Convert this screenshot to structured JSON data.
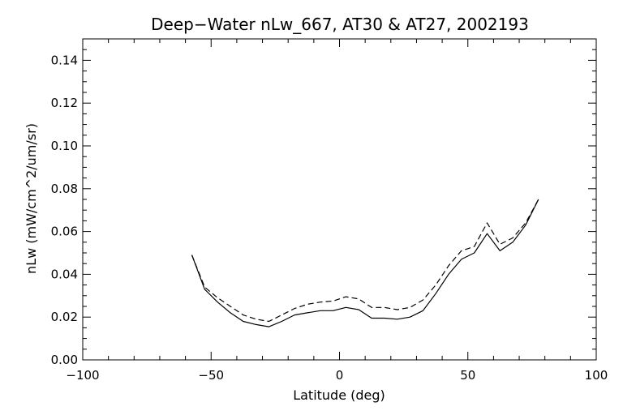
{
  "chart_data": {
    "type": "line",
    "title": "Deep−Water nLw_667, AT30 & AT27, 2002193",
    "xlabel": "Latitude (deg)",
    "ylabel": "nLw (mW/cm^2/um/sr)",
    "xlim": [
      -100,
      100
    ],
    "ylim": [
      0.0,
      0.15
    ],
    "x_ticks": [
      "−100",
      "−50",
      "0",
      "50",
      "100"
    ],
    "y_ticks": [
      "0.00",
      "0.02",
      "0.04",
      "0.06",
      "0.08",
      "0.10",
      "0.12",
      "0.14"
    ],
    "x_tick_values": [
      -100,
      -50,
      0,
      50,
      100
    ],
    "y_tick_values": [
      0.0,
      0.02,
      0.04,
      0.06,
      0.08,
      0.1,
      0.12,
      0.14
    ],
    "grid": false,
    "legend": "none",
    "series": [
      {
        "style": "solid",
        "color": "#000000",
        "x": [
          -57.5,
          -52.5,
          -47.5,
          -42.5,
          -37.5,
          -32.5,
          -27.5,
          -22.5,
          -17.5,
          -12.5,
          -7.5,
          -2.5,
          2.5,
          7.5,
          12.5,
          17.5,
          22.5,
          27.5,
          32.5,
          37.5,
          42.5,
          47.5,
          52.5,
          57.5,
          62.5,
          67.5,
          72.5,
          77.5
        ],
        "y": [
          0.049,
          0.033,
          0.027,
          0.022,
          0.018,
          0.0165,
          0.0155,
          0.018,
          0.021,
          0.022,
          0.023,
          0.023,
          0.0245,
          0.0235,
          0.0195,
          0.0195,
          0.019,
          0.02,
          0.023,
          0.031,
          0.04,
          0.047,
          0.05,
          0.059,
          0.051,
          0.055,
          0.063,
          0.075
        ]
      },
      {
        "style": "dashed",
        "color": "#000000",
        "x": [
          -57.5,
          -52.5,
          -47.5,
          -42.5,
          -37.5,
          -32.5,
          -27.5,
          -22.5,
          -17.5,
          -12.5,
          -7.5,
          -2.5,
          2.5,
          7.5,
          12.5,
          17.5,
          22.5,
          27.5,
          32.5,
          37.5,
          42.5,
          47.5,
          52.5,
          57.5,
          62.5,
          67.5,
          72.5,
          77.5
        ],
        "y": [
          0.049,
          0.034,
          0.029,
          0.025,
          0.021,
          0.019,
          0.018,
          0.021,
          0.024,
          0.026,
          0.027,
          0.0275,
          0.0295,
          0.0285,
          0.0245,
          0.0245,
          0.0235,
          0.0245,
          0.028,
          0.035,
          0.044,
          0.051,
          0.053,
          0.064,
          0.054,
          0.057,
          0.064,
          0.075
        ]
      }
    ]
  }
}
